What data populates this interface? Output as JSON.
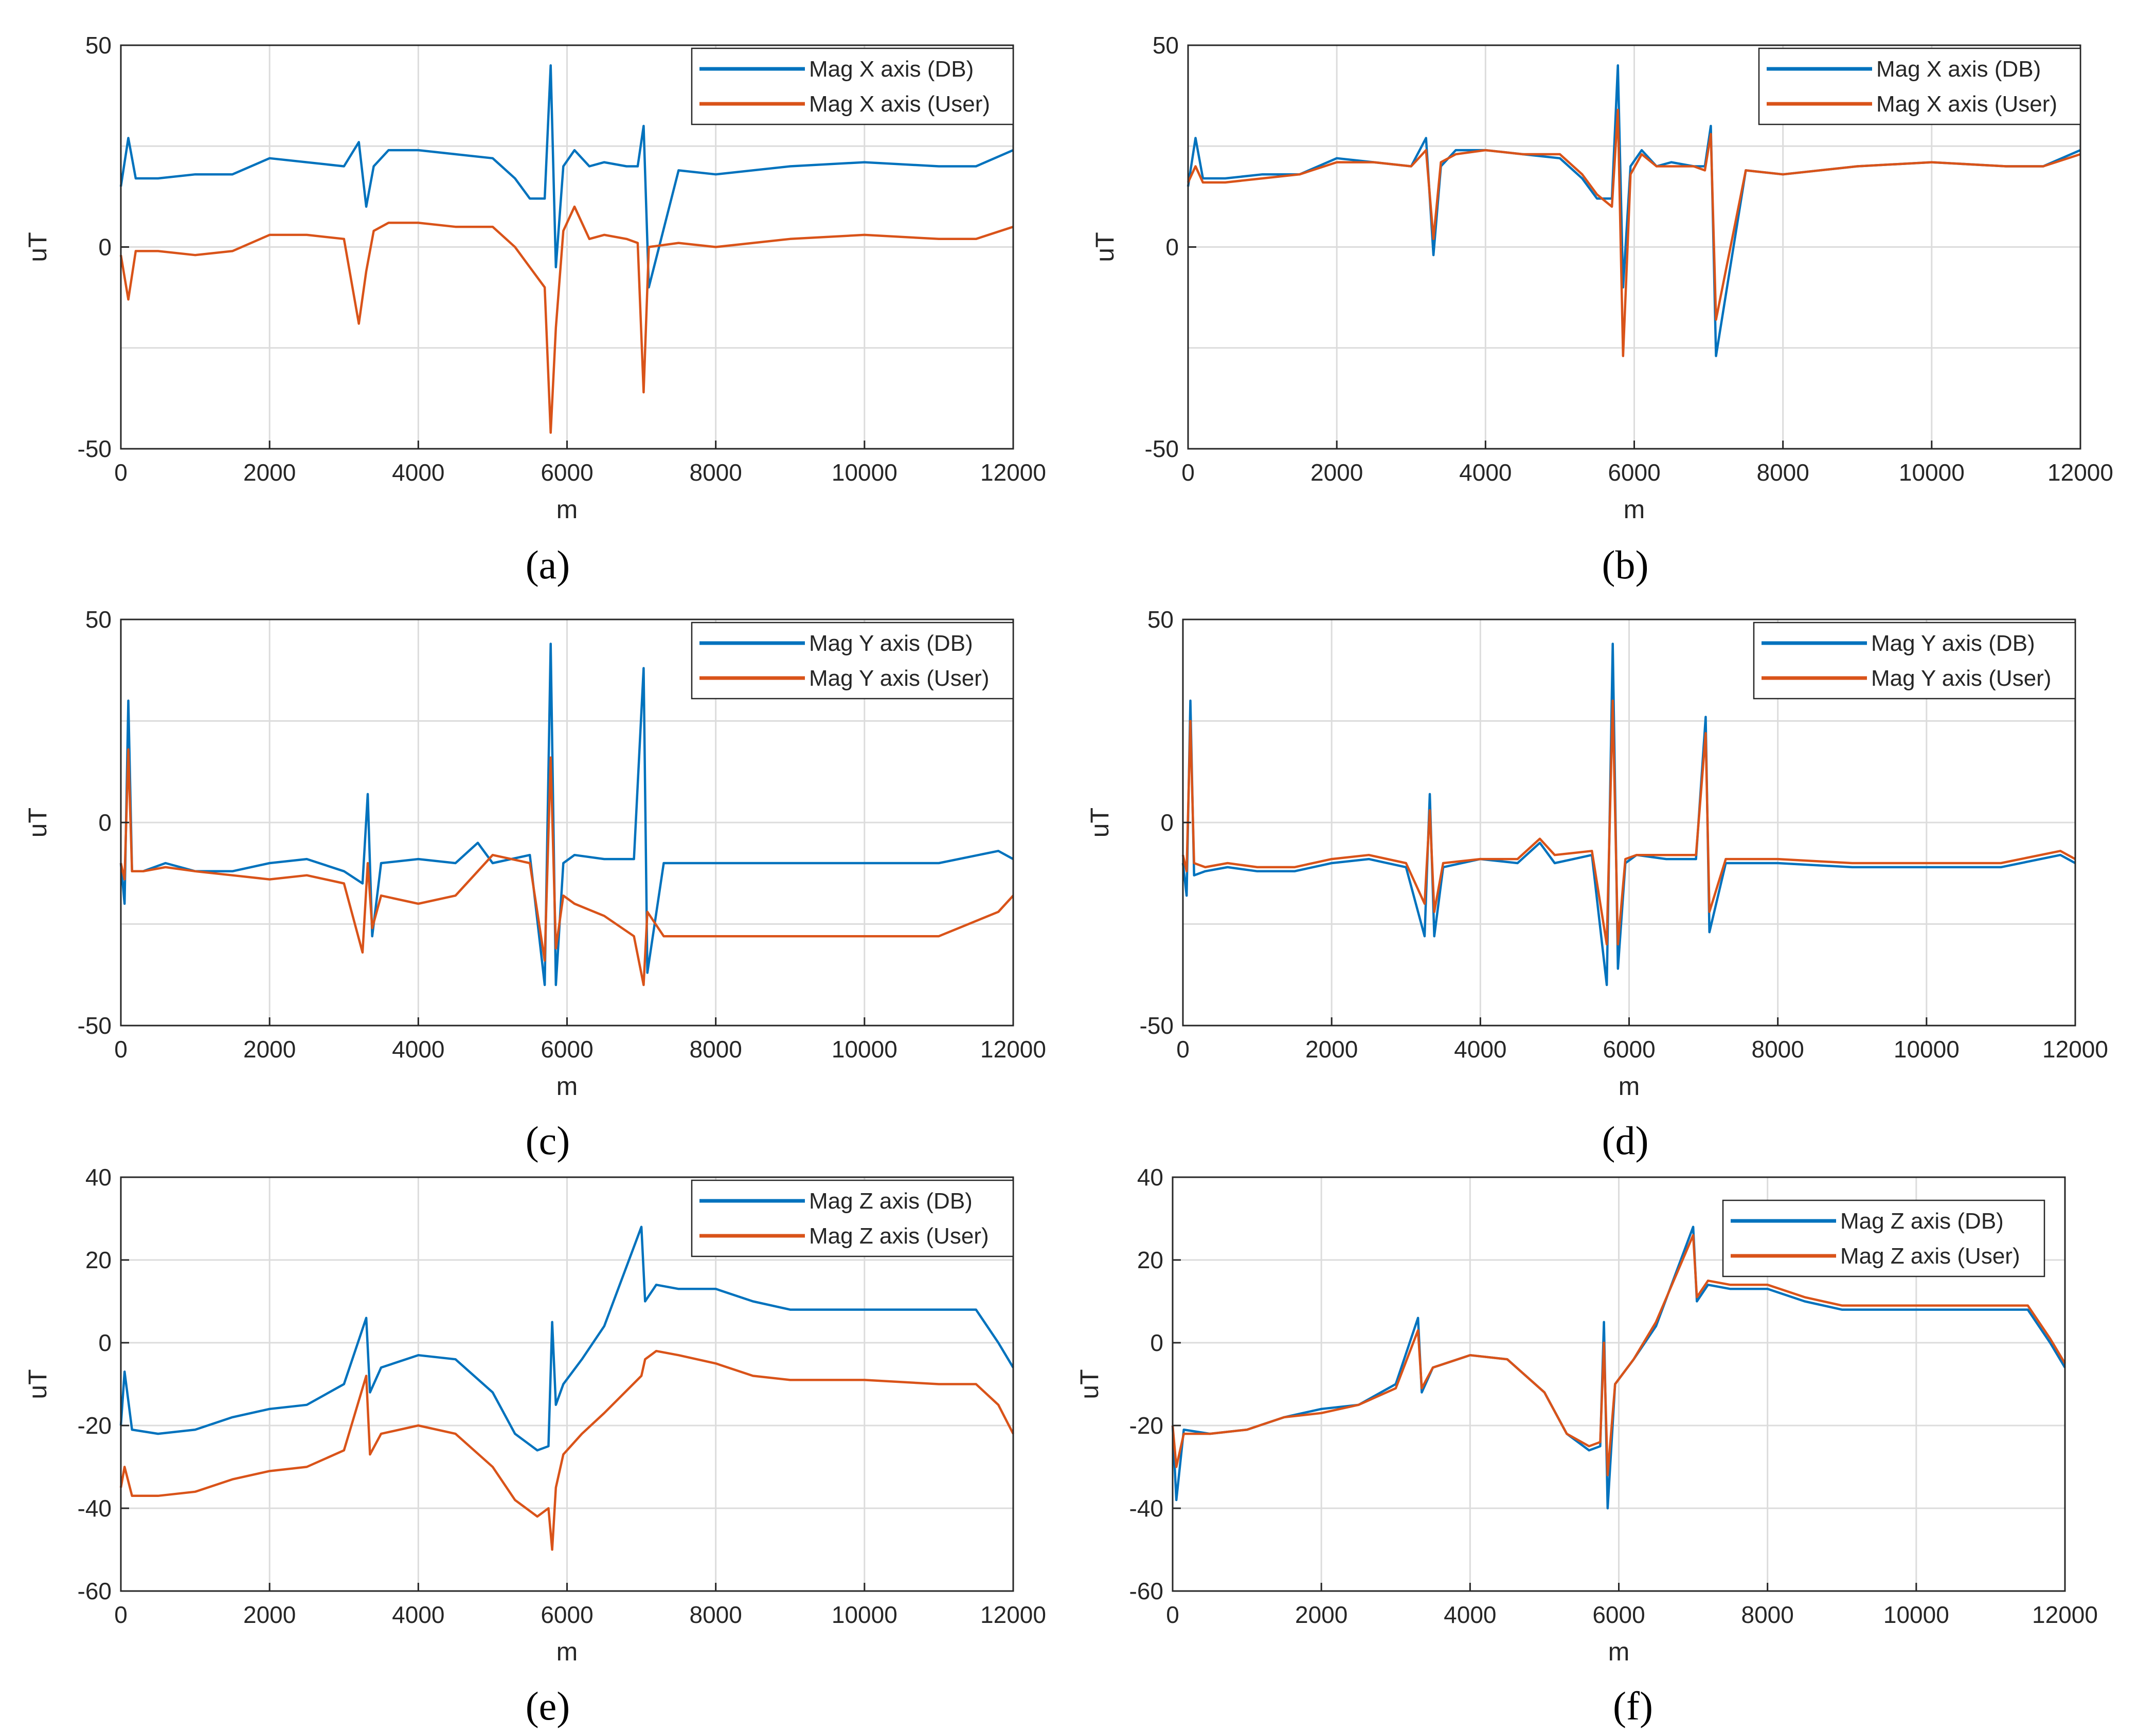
{
  "colors": {
    "db": "#0072BD",
    "user": "#D95319",
    "grid": "#dcdcdc",
    "axis": "#262626"
  },
  "chart_data": [
    {
      "type": "line",
      "caption": "(a)",
      "xlabel": "m",
      "ylabel": "uT",
      "xlim": [
        0,
        12000
      ],
      "ylim": [
        -50,
        50
      ],
      "xticks": [
        "0",
        "2000",
        "4000",
        "6000",
        "8000",
        "10000",
        "12000"
      ],
      "yticks": [
        "50",
        "0",
        "-50"
      ],
      "grid": true,
      "legend_position": "top-right",
      "series": [
        {
          "name": "Mag X axis (DB)",
          "role": "db",
          "x": [
            0,
            100,
            200,
            500,
            1000,
            1500,
            2000,
            2500,
            3000,
            3200,
            3300,
            3400,
            3600,
            4000,
            4500,
            5000,
            5300,
            5500,
            5700,
            5780,
            5850,
            5950,
            6100,
            6300,
            6500,
            6800,
            6950,
            7030,
            7100,
            7500,
            8000,
            9000,
            10000,
            11000,
            11500,
            12000
          ],
          "y": [
            15,
            27,
            17,
            17,
            18,
            18,
            22,
            21,
            20,
            26,
            10,
            20,
            24,
            24,
            23,
            22,
            17,
            12,
            12,
            45,
            -5,
            20,
            24,
            20,
            21,
            20,
            20,
            30,
            -10,
            19,
            18,
            20,
            21,
            20,
            20,
            24
          ]
        },
        {
          "name": "Mag X axis (User)",
          "role": "user",
          "x": [
            0,
            100,
            200,
            500,
            1000,
            1500,
            2000,
            2500,
            3000,
            3200,
            3300,
            3400,
            3600,
            4000,
            4500,
            5000,
            5300,
            5500,
            5700,
            5780,
            5850,
            5950,
            6100,
            6300,
            6500,
            6800,
            6950,
            7030,
            7100,
            7500,
            8000,
            9000,
            10000,
            11000,
            11500,
            12000
          ],
          "y": [
            -2,
            -13,
            -1,
            -1,
            -2,
            -1,
            3,
            3,
            2,
            -19,
            -6,
            4,
            6,
            6,
            5,
            5,
            0,
            -5,
            -10,
            -46,
            -20,
            4,
            10,
            2,
            3,
            2,
            1,
            -36,
            0,
            1,
            0,
            2,
            3,
            2,
            2,
            5
          ]
        }
      ]
    },
    {
      "type": "line",
      "caption": "(b)",
      "xlabel": "m",
      "ylabel": "uT",
      "xlim": [
        0,
        12000
      ],
      "ylim": [
        -50,
        50
      ],
      "xticks": [
        "0",
        "2000",
        "4000",
        "6000",
        "8000",
        "10000",
        "12000"
      ],
      "yticks": [
        "50",
        "0",
        "-50"
      ],
      "grid": true,
      "legend_position": "top-right",
      "series": [
        {
          "name": "Mag X axis (DB)",
          "role": "db",
          "x": [
            0,
            100,
            200,
            500,
            1000,
            1500,
            2000,
            2500,
            3000,
            3200,
            3300,
            3400,
            3600,
            4000,
            4500,
            5000,
            5300,
            5500,
            5700,
            5780,
            5850,
            5950,
            6100,
            6300,
            6500,
            6800,
            6950,
            7030,
            7100,
            7500,
            8000,
            9000,
            10000,
            11000,
            11500,
            12000
          ],
          "y": [
            15,
            27,
            17,
            17,
            18,
            18,
            22,
            21,
            20,
            27,
            -2,
            20,
            24,
            24,
            23,
            22,
            17,
            12,
            12,
            45,
            -10,
            20,
            24,
            20,
            21,
            20,
            20,
            30,
            -27,
            19,
            18,
            20,
            21,
            20,
            20,
            24
          ]
        },
        {
          "name": "Mag X axis (User)",
          "role": "user",
          "x": [
            0,
            100,
            200,
            500,
            1000,
            1500,
            2000,
            2500,
            3000,
            3200,
            3300,
            3400,
            3600,
            4000,
            4500,
            5000,
            5300,
            5500,
            5700,
            5780,
            5850,
            5950,
            6100,
            6300,
            6500,
            6800,
            6950,
            7030,
            7100,
            7500,
            8000,
            9000,
            10000,
            11000,
            11500,
            12000
          ],
          "y": [
            16,
            20,
            16,
            16,
            17,
            18,
            21,
            21,
            20,
            24,
            2,
            21,
            23,
            24,
            23,
            23,
            18,
            13,
            10,
            34,
            -27,
            18,
            23,
            20,
            20,
            20,
            19,
            28,
            -18,
            19,
            18,
            20,
            21,
            20,
            20,
            23
          ]
        }
      ]
    },
    {
      "type": "line",
      "caption": "(c)",
      "xlabel": "m",
      "ylabel": "uT",
      "xlim": [
        0,
        12000
      ],
      "ylim": [
        -50,
        50
      ],
      "xticks": [
        "0",
        "2000",
        "4000",
        "6000",
        "8000",
        "10000",
        "12000"
      ],
      "yticks": [
        "50",
        "0",
        "-50"
      ],
      "grid": true,
      "legend_position": "top-right",
      "series": [
        {
          "name": "Mag Y axis (DB)",
          "role": "db",
          "x": [
            0,
            50,
            100,
            150,
            300,
            600,
            1000,
            1500,
            2000,
            2500,
            3000,
            3250,
            3320,
            3380,
            3500,
            4000,
            4500,
            4800,
            5000,
            5500,
            5700,
            5780,
            5850,
            5950,
            6100,
            6500,
            6900,
            7030,
            7080,
            7300,
            8000,
            9000,
            10000,
            11000,
            11800,
            12000
          ],
          "y": [
            -10,
            -20,
            30,
            -12,
            -12,
            -10,
            -12,
            -12,
            -10,
            -9,
            -12,
            -15,
            7,
            -28,
            -10,
            -9,
            -10,
            -5,
            -10,
            -8,
            -40,
            44,
            -40,
            -10,
            -8,
            -9,
            -9,
            38,
            -37,
            -10,
            -10,
            -10,
            -10,
            -10,
            -7,
            -9
          ]
        },
        {
          "name": "Mag Y axis (User)",
          "role": "user",
          "x": [
            0,
            50,
            100,
            150,
            300,
            600,
            1000,
            1500,
            2000,
            2500,
            3000,
            3250,
            3320,
            3380,
            3500,
            4000,
            4500,
            4800,
            5000,
            5500,
            5700,
            5780,
            5850,
            5950,
            6100,
            6500,
            6900,
            7030,
            7080,
            7300,
            8000,
            9000,
            10000,
            11000,
            11800,
            12000
          ],
          "y": [
            -10,
            -14,
            18,
            -12,
            -12,
            -11,
            -12,
            -13,
            -14,
            -13,
            -15,
            -32,
            -10,
            -26,
            -18,
            -20,
            -18,
            -12,
            -8,
            -10,
            -34,
            16,
            -31,
            -18,
            -20,
            -23,
            -28,
            -40,
            -22,
            -28,
            -28,
            -28,
            -28,
            -28,
            -22,
            -18
          ]
        }
      ]
    },
    {
      "type": "line",
      "caption": "(d)",
      "xlabel": "m",
      "ylabel": "uT",
      "xlim": [
        0,
        12000
      ],
      "ylim": [
        -50,
        50
      ],
      "xticks": [
        "0",
        "2000",
        "4000",
        "6000",
        "8000",
        "10000",
        "12000"
      ],
      "yticks": [
        "50",
        "0",
        "-50"
      ],
      "grid": true,
      "legend_position": "top-right",
      "series": [
        {
          "name": "Mag Y axis (DB)",
          "role": "db",
          "x": [
            0,
            50,
            100,
            150,
            300,
            600,
            1000,
            1500,
            2000,
            2500,
            3000,
            3250,
            3320,
            3380,
            3500,
            4000,
            4500,
            4800,
            5000,
            5500,
            5700,
            5780,
            5850,
            5950,
            6100,
            6500,
            6900,
            7030,
            7080,
            7300,
            8000,
            9000,
            10000,
            11000,
            11800,
            12000
          ],
          "y": [
            -10,
            -18,
            30,
            -13,
            -12,
            -11,
            -12,
            -12,
            -10,
            -9,
            -11,
            -28,
            7,
            -28,
            -11,
            -9,
            -10,
            -5,
            -10,
            -8,
            -40,
            44,
            -36,
            -10,
            -8,
            -9,
            -9,
            26,
            -27,
            -10,
            -10,
            -11,
            -11,
            -11,
            -8,
            -10
          ]
        },
        {
          "name": "Mag Y axis (User)",
          "role": "user",
          "x": [
            0,
            50,
            100,
            150,
            300,
            600,
            1000,
            1500,
            2000,
            2500,
            3000,
            3250,
            3320,
            3380,
            3500,
            4000,
            4500,
            4800,
            5000,
            5500,
            5700,
            5780,
            5850,
            5950,
            6100,
            6500,
            6900,
            7030,
            7080,
            7300,
            8000,
            9000,
            10000,
            11000,
            11800,
            12000
          ],
          "y": [
            -8,
            -12,
            25,
            -10,
            -11,
            -10,
            -11,
            -11,
            -9,
            -8,
            -10,
            -20,
            3,
            -22,
            -10,
            -9,
            -9,
            -4,
            -8,
            -7,
            -30,
            30,
            -30,
            -9,
            -8,
            -8,
            -8,
            22,
            -22,
            -9,
            -9,
            -10,
            -10,
            -10,
            -7,
            -9
          ]
        }
      ]
    },
    {
      "type": "line",
      "caption": "(e)",
      "xlabel": "m",
      "ylabel": "uT",
      "xlim": [
        0,
        12000
      ],
      "ylim": [
        -60,
        40
      ],
      "xticks": [
        "0",
        "2000",
        "4000",
        "6000",
        "8000",
        "10000",
        "12000"
      ],
      "yticks": [
        "40",
        "20",
        "0",
        "-20",
        "-40",
        "-60"
      ],
      "grid": true,
      "legend_position": "top-right",
      "series": [
        {
          "name": "Mag Z axis (DB)",
          "role": "db",
          "x": [
            0,
            50,
            150,
            500,
            1000,
            1500,
            2000,
            2500,
            3000,
            3300,
            3350,
            3500,
            4000,
            4500,
            5000,
            5300,
            5600,
            5750,
            5800,
            5850,
            5950,
            6200,
            6500,
            7000,
            7050,
            7200,
            7500,
            8000,
            8500,
            9000,
            10000,
            11000,
            11500,
            11800,
            12000
          ],
          "y": [
            -20,
            -7,
            -21,
            -22,
            -21,
            -18,
            -16,
            -15,
            -10,
            6,
            -12,
            -6,
            -3,
            -4,
            -12,
            -22,
            -26,
            -25,
            5,
            -15,
            -10,
            -4,
            4,
            28,
            10,
            14,
            13,
            13,
            10,
            8,
            8,
            8,
            8,
            0,
            -6
          ]
        },
        {
          "name": "Mag Z axis (User)",
          "role": "user",
          "x": [
            0,
            50,
            150,
            500,
            1000,
            1500,
            2000,
            2500,
            3000,
            3300,
            3350,
            3500,
            4000,
            4500,
            5000,
            5300,
            5600,
            5750,
            5800,
            5850,
            5950,
            6200,
            6500,
            7000,
            7050,
            7200,
            7500,
            8000,
            8500,
            9000,
            10000,
            11000,
            11500,
            11800,
            12000
          ],
          "y": [
            -35,
            -30,
            -37,
            -37,
            -36,
            -33,
            -31,
            -30,
            -26,
            -8,
            -27,
            -22,
            -20,
            -22,
            -30,
            -38,
            -42,
            -40,
            -50,
            -35,
            -27,
            -22,
            -17,
            -8,
            -4,
            -2,
            -3,
            -5,
            -8,
            -9,
            -9,
            -10,
            -10,
            -15,
            -22
          ]
        }
      ]
    },
    {
      "type": "line",
      "caption": "(f)",
      "xlabel": "m",
      "ylabel": "uT",
      "xlim": [
        0,
        12000
      ],
      "ylim": [
        -60,
        40
      ],
      "xticks": [
        "0",
        "2000",
        "4000",
        "6000",
        "8000",
        "10000",
        "12000"
      ],
      "yticks": [
        "40",
        "20",
        "0",
        "-20",
        "-40",
        "-60"
      ],
      "grid": true,
      "legend_position": "top-right",
      "series": [
        {
          "name": "Mag Z axis (DB)",
          "role": "db",
          "x": [
            0,
            50,
            150,
            500,
            1000,
            1500,
            2000,
            2500,
            3000,
            3300,
            3350,
            3500,
            4000,
            4500,
            5000,
            5300,
            5600,
            5750,
            5800,
            5850,
            5950,
            6200,
            6500,
            7000,
            7050,
            7200,
            7500,
            8000,
            8500,
            9000,
            10000,
            11000,
            11500,
            11800,
            12000
          ],
          "y": [
            -20,
            -38,
            -21,
            -22,
            -21,
            -18,
            -16,
            -15,
            -10,
            6,
            -12,
            -6,
            -3,
            -4,
            -12,
            -22,
            -26,
            -25,
            5,
            -40,
            -10,
            -4,
            4,
            28,
            10,
            14,
            13,
            13,
            10,
            8,
            8,
            8,
            8,
            0,
            -6
          ]
        },
        {
          "name": "Mag Z axis (User)",
          "role": "user",
          "x": [
            0,
            50,
            150,
            500,
            1000,
            1500,
            2000,
            2500,
            3000,
            3300,
            3350,
            3500,
            4000,
            4500,
            5000,
            5300,
            5600,
            5750,
            5800,
            5850,
            5950,
            6200,
            6500,
            7000,
            7050,
            7200,
            7500,
            8000,
            8500,
            9000,
            10000,
            11000,
            11500,
            11800,
            12000
          ],
          "y": [
            -20,
            -30,
            -22,
            -22,
            -21,
            -18,
            -17,
            -15,
            -11,
            3,
            -11,
            -6,
            -3,
            -4,
            -12,
            -22,
            -25,
            -24,
            0,
            -32,
            -10,
            -4,
            5,
            26,
            11,
            15,
            14,
            14,
            11,
            9,
            9,
            9,
            9,
            1,
            -5
          ]
        }
      ]
    }
  ]
}
